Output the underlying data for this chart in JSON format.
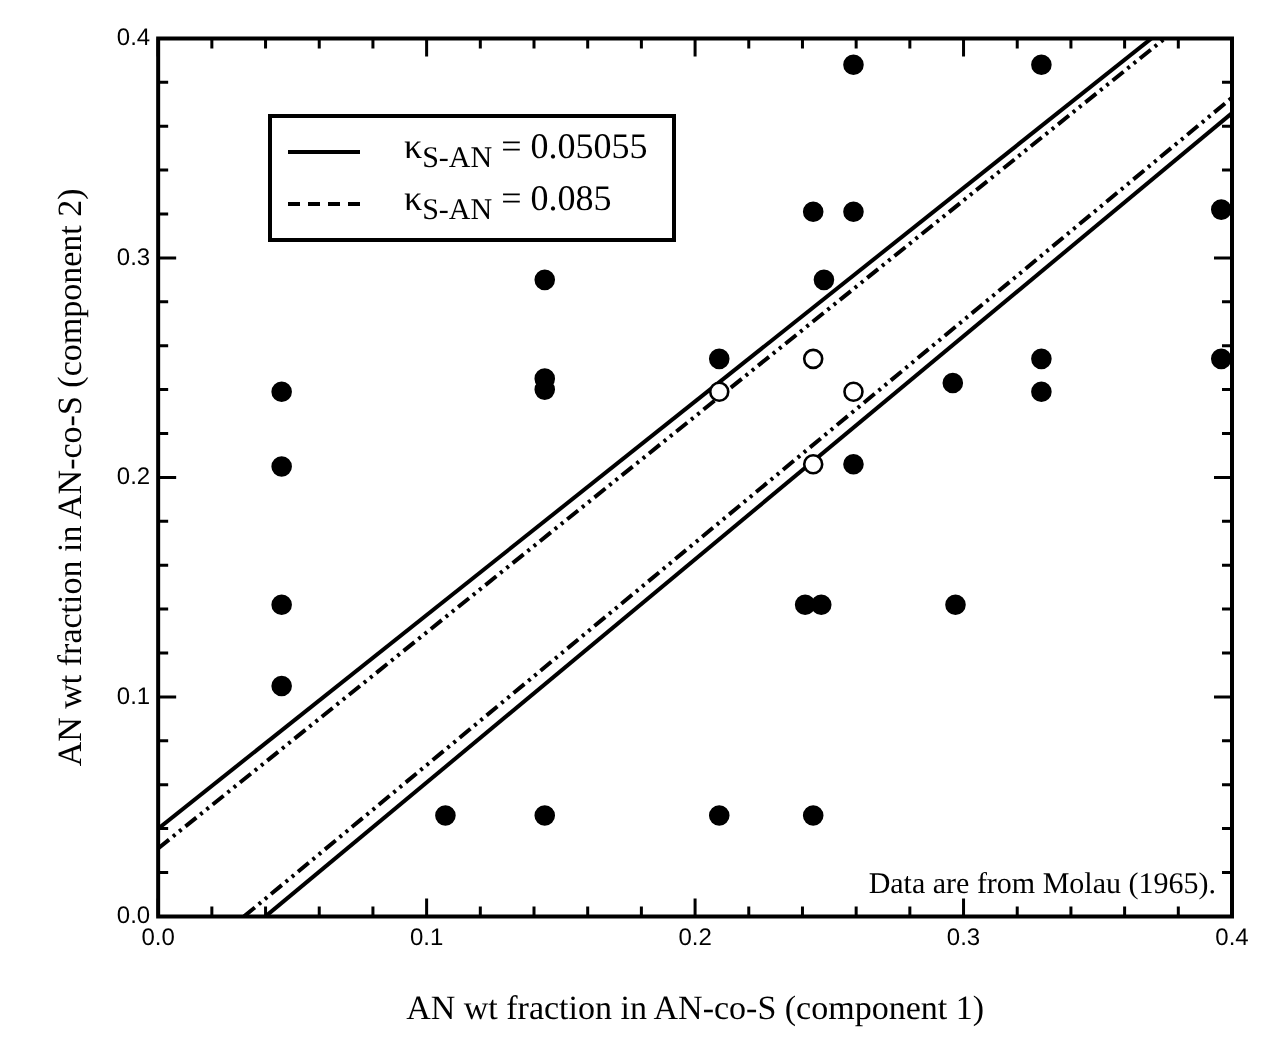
{
  "chart_data": {
    "type": "scatter",
    "xlabel": "AN wt fraction in AN-co-S (component 1)",
    "ylabel": "AN wt fraction in AN-co-S (component 2)",
    "annotations": [
      "Data are from Molau (1965)."
    ],
    "xlim": [
      0,
      0.4
    ],
    "ylim": [
      0,
      0.4
    ],
    "xticks": [
      {
        "value": 0,
        "label": "0.0"
      },
      {
        "value": 0.02,
        "label": null
      },
      {
        "value": 0.04,
        "label": null
      },
      {
        "value": 0.06,
        "label": null
      },
      {
        "value": 0.08,
        "label": null
      },
      {
        "value": 0.1,
        "label": "0.1"
      },
      {
        "value": 0.12,
        "label": null
      },
      {
        "value": 0.14,
        "label": null
      },
      {
        "value": 0.16,
        "label": null
      },
      {
        "value": 0.18,
        "label": null
      },
      {
        "value": 0.2,
        "label": "0.2"
      },
      {
        "value": 0.22,
        "label": null
      },
      {
        "value": 0.24,
        "label": null
      },
      {
        "value": 0.26,
        "label": null
      },
      {
        "value": 0.28,
        "label": null
      },
      {
        "value": 0.3,
        "label": "0.3"
      },
      {
        "value": 0.32,
        "label": null
      },
      {
        "value": 0.34,
        "label": null
      },
      {
        "value": 0.36,
        "label": null
      },
      {
        "value": 0.38,
        "label": null
      },
      {
        "value": 0.4,
        "label": "0.4"
      }
    ],
    "yticks": [
      {
        "value": 0,
        "label": "0.0"
      },
      {
        "value": 0.02,
        "label": null
      },
      {
        "value": 0.04,
        "label": null
      },
      {
        "value": 0.06,
        "label": null
      },
      {
        "value": 0.08,
        "label": null
      },
      {
        "value": 0.1,
        "label": "0.1"
      },
      {
        "value": 0.12,
        "label": null
      },
      {
        "value": 0.14,
        "label": null
      },
      {
        "value": 0.16,
        "label": null
      },
      {
        "value": 0.18,
        "label": null
      },
      {
        "value": 0.2,
        "label": "0.2"
      },
      {
        "value": 0.22,
        "label": null
      },
      {
        "value": 0.24,
        "label": null
      },
      {
        "value": 0.26,
        "label": null
      },
      {
        "value": 0.28,
        "label": null
      },
      {
        "value": 0.3,
        "label": "0.3"
      },
      {
        "value": 0.32,
        "label": null
      },
      {
        "value": 0.34,
        "label": null
      },
      {
        "value": 0.36,
        "label": null
      },
      {
        "value": 0.38,
        "label": null
      },
      {
        "value": 0.4,
        "label": "0.4"
      }
    ],
    "grid": false,
    "legend": "top left",
    "series": [
      {
        "type": "scatter",
        "color": "#000000",
        "marker": "circle",
        "x": [
          0.046,
          0.046,
          0.046,
          0.046,
          0.144,
          0.144,
          0.144,
          0.144,
          0.107,
          0.259,
          0.329,
          0.244,
          0.259,
          0.248,
          0.396,
          0.209,
          0.329,
          0.296,
          0.329,
          0.396,
          0.259,
          0.241,
          0.247,
          0.297,
          0.209,
          0.244
        ],
        "values": [
          0.239,
          0.205,
          0.142,
          0.105,
          0.29,
          0.245,
          0.24,
          0.046,
          0.046,
          0.388,
          0.388,
          0.321,
          0.321,
          0.29,
          0.322,
          0.254,
          0.254,
          0.243,
          0.239,
          0.254,
          0.206,
          0.142,
          0.142,
          0.142,
          0.046,
          0.046
        ]
      },
      {
        "type": "scatter",
        "color": "#ffffff",
        "marker": "circle",
        "x": [
          0.209,
          0.244,
          0.259,
          0.244
        ],
        "values": [
          0.239,
          0.254,
          0.239,
          0.206
        ]
      },
      {
        "type": "line",
        "name": "κ$_{S-AN}$ = 0.05055",
        "color": "#000000",
        "line_style": "solid",
        "marker": "none",
        "x": [
          0,
          0.37
        ],
        "values": [
          0.04,
          0.4
        ]
      },
      {
        "type": "line",
        "color": "#000000",
        "line_style": "solid",
        "marker": "none",
        "x": [
          0.04,
          0.4
        ],
        "values": [
          0,
          0.366
        ]
      },
      {
        "type": "line",
        "name": "κ$_{S-AN}$ = 0.085",
        "color": "#000000",
        "line_style": "dashed",
        "marker": "none",
        "x": [
          0,
          0.375
        ],
        "values": [
          0.031,
          0.4
        ]
      },
      {
        "type": "line",
        "color": "#000000",
        "line_style": "dashed",
        "marker": "none",
        "x": [
          0.032,
          0.4
        ],
        "values": [
          0,
          0.373
        ]
      }
    ]
  }
}
